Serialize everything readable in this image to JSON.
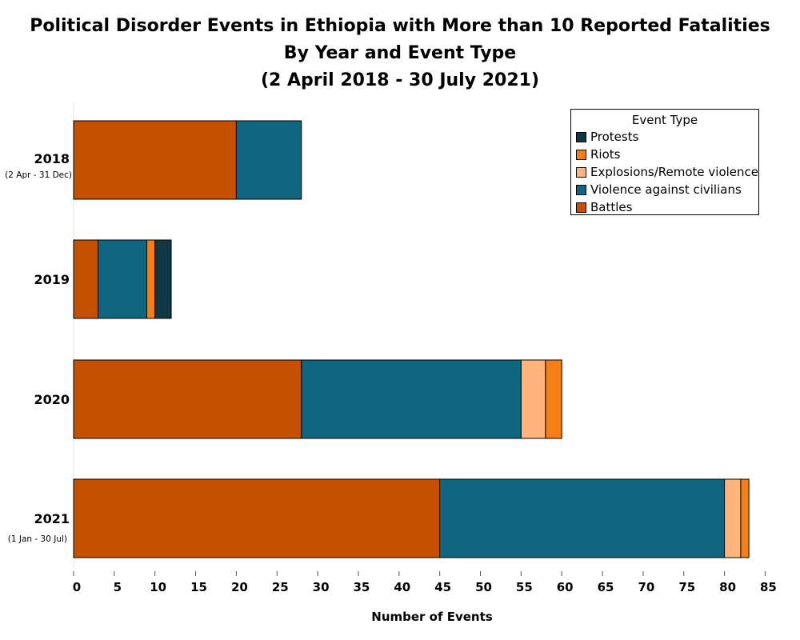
{
  "title": "Political Disorder Events in Ethiopia with More than 10 Reported Fatalities",
  "subtitle": "By Year and Event Type",
  "period": "(2 April 2018 - 30 July 2021)",
  "chart_data": {
    "type": "bar",
    "orientation": "horizontal",
    "stacked": true,
    "categories": [
      "2018",
      "2019",
      "2020",
      "2021"
    ],
    "category_sublabels": [
      "(2 Apr - 31 Dec)",
      "",
      "",
      "(1 Jan - 30 Jul)"
    ],
    "series": [
      {
        "name": "Battles",
        "color": "#c55100",
        "values": [
          20,
          3,
          28,
          45
        ]
      },
      {
        "name": "Violence against civilians",
        "color": "#10667f",
        "values": [
          8,
          6,
          27,
          35
        ]
      },
      {
        "name": "Explosions/Remote violence",
        "color": "#ffb47c",
        "values": [
          0,
          0,
          3,
          2
        ]
      },
      {
        "name": "Riots",
        "color": "#f57f17",
        "values": [
          0,
          1,
          2,
          1
        ]
      },
      {
        "name": "Protests",
        "color": "#0f3845",
        "values": [
          0,
          2,
          0,
          0
        ]
      }
    ],
    "xlabel": "Number of Events",
    "ylabel": "",
    "xlim": [
      0,
      88
    ],
    "xticks": [
      0,
      5,
      10,
      15,
      20,
      25,
      30,
      35,
      40,
      45,
      50,
      55,
      60,
      65,
      70,
      75,
      80,
      85
    ],
    "grid": false,
    "legend": {
      "title": "Event Type",
      "placement": "top-right",
      "entries": [
        "Protests",
        "Riots",
        "Explosions/Remote violence",
        "Violence against civilians",
        "Battles"
      ]
    }
  }
}
